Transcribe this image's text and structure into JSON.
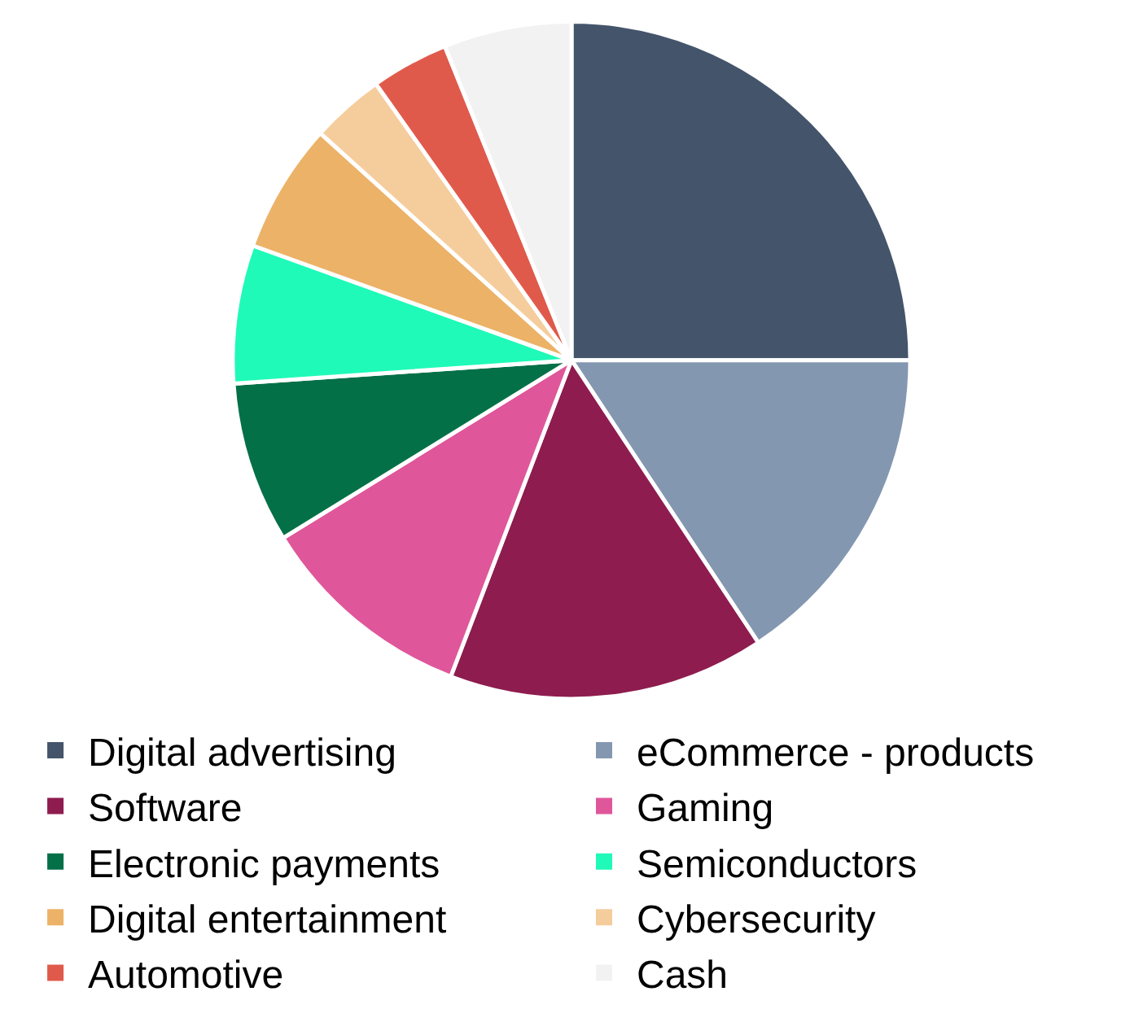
{
  "chart_data": {
    "type": "pie",
    "categories": [
      "Digital advertising",
      "eCommerce - products",
      "Software",
      "Gaming",
      "Electronic payments",
      "Semiconductors",
      "Digital entertainment",
      "Cybersecurity",
      "Automotive",
      "Cash"
    ],
    "values": [
      25,
      15.7,
      15.1,
      10.4,
      7.7,
      6.6,
      6.2,
      3.5,
      3.7,
      6.1
    ],
    "colors": [
      "#44546a",
      "#8497b0",
      "#8e1c4f",
      "#e0569a",
      "#047048",
      "#1ffab8",
      "#ecb267",
      "#f5cd9c",
      "#e05a4c",
      "#f2f2f2"
    ],
    "legend": "bottom"
  }
}
